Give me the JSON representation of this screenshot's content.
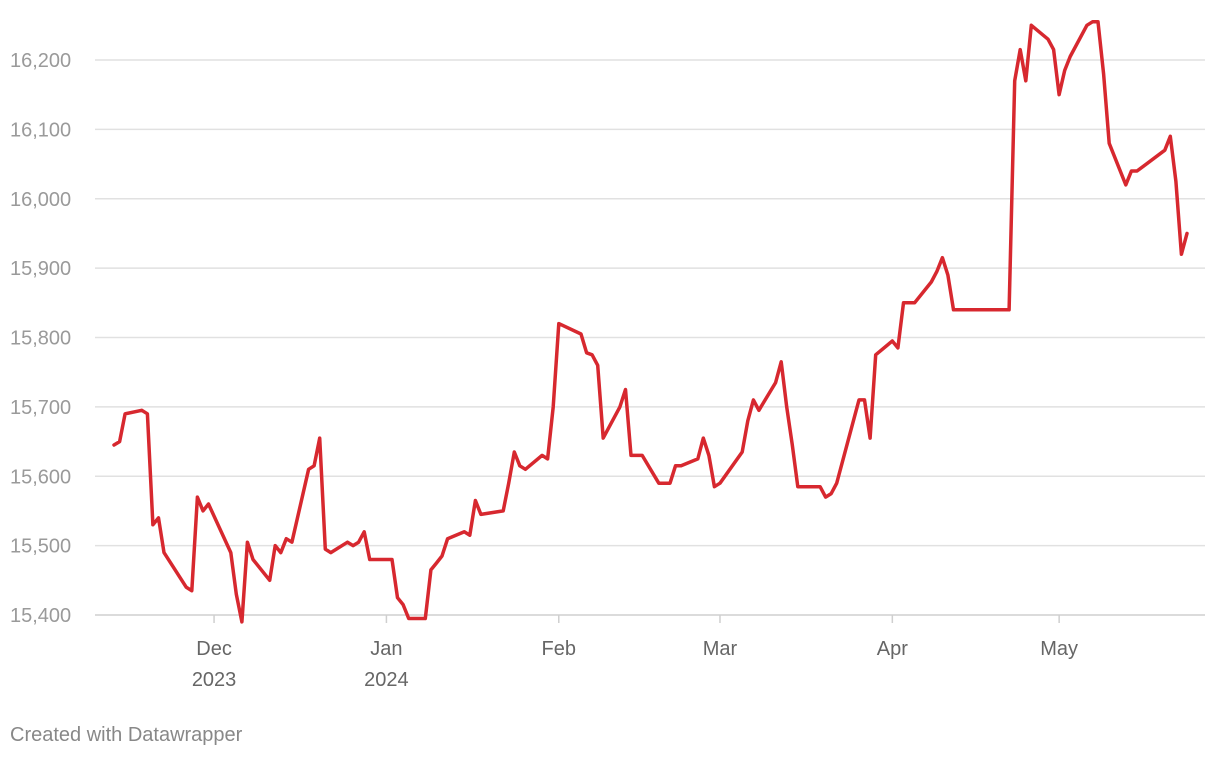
{
  "chart_data": {
    "type": "line",
    "title": "",
    "xlabel": "",
    "ylabel": "",
    "ylim": [
      15380,
      16265
    ],
    "grid": true,
    "y_ticks": [
      {
        "value": 15400,
        "label": "15,400"
      },
      {
        "value": 15500,
        "label": "15,500"
      },
      {
        "value": 15600,
        "label": "15,600"
      },
      {
        "value": 15700,
        "label": "15,700"
      },
      {
        "value": 15800,
        "label": "15,800"
      },
      {
        "value": 15900,
        "label": "15,900"
      },
      {
        "value": 16000,
        "label": "16,000"
      },
      {
        "value": 16100,
        "label": "16,100"
      },
      {
        "value": 16200,
        "label": "16,200"
      }
    ],
    "x_ticks": [
      {
        "date": "2023-12-01",
        "label": "Dec",
        "sublabel": "2023"
      },
      {
        "date": "2024-01-01",
        "label": "Jan",
        "sublabel": "2024"
      },
      {
        "date": "2024-02-01",
        "label": "Feb",
        "sublabel": ""
      },
      {
        "date": "2024-03-01",
        "label": "Mar",
        "sublabel": ""
      },
      {
        "date": "2024-04-01",
        "label": "Apr",
        "sublabel": ""
      },
      {
        "date": "2024-05-01",
        "label": "May",
        "sublabel": ""
      }
    ],
    "xlim": [
      "2023-11-10",
      "2024-05-20"
    ],
    "series": [
      {
        "color": "#d7282f",
        "points": [
          [
            "2023-11-13",
            15645
          ],
          [
            "2023-11-14",
            15650
          ],
          [
            "2023-11-15",
            15690
          ],
          [
            "2023-11-18",
            15695
          ],
          [
            "2023-11-19",
            15690
          ],
          [
            "2023-11-20",
            15530
          ],
          [
            "2023-11-21",
            15540
          ],
          [
            "2023-11-22",
            15490
          ],
          [
            "2023-11-26",
            15440
          ],
          [
            "2023-11-27",
            15435
          ],
          [
            "2023-11-28",
            15570
          ],
          [
            "2023-11-29",
            15550
          ],
          [
            "2023-11-30",
            15560
          ],
          [
            "2023-12-04",
            15490
          ],
          [
            "2023-12-05",
            15430
          ],
          [
            "2023-12-06",
            15390
          ],
          [
            "2023-12-07",
            15505
          ],
          [
            "2023-12-08",
            15480
          ],
          [
            "2023-12-11",
            15450
          ],
          [
            "2023-12-12",
            15500
          ],
          [
            "2023-12-13",
            15490
          ],
          [
            "2023-12-14",
            15510
          ],
          [
            "2023-12-15",
            15505
          ],
          [
            "2023-12-18",
            15610
          ],
          [
            "2023-12-19",
            15615
          ],
          [
            "2023-12-20",
            15655
          ],
          [
            "2023-12-21",
            15495
          ],
          [
            "2023-12-22",
            15490
          ],
          [
            "2023-12-25",
            15505
          ],
          [
            "2023-12-26",
            15500
          ],
          [
            "2023-12-27",
            15505
          ],
          [
            "2023-12-28",
            15520
          ],
          [
            "2023-12-29",
            15480
          ],
          [
            "2024-01-02",
            15480
          ],
          [
            "2024-01-03",
            15425
          ],
          [
            "2024-01-04",
            15415
          ],
          [
            "2024-01-05",
            15395
          ],
          [
            "2024-01-08",
            15395
          ],
          [
            "2024-01-09",
            15465
          ],
          [
            "2024-01-10",
            15475
          ],
          [
            "2024-01-11",
            15485
          ],
          [
            "2024-01-12",
            15510
          ],
          [
            "2024-01-15",
            15520
          ],
          [
            "2024-01-16",
            15515
          ],
          [
            "2024-01-17",
            15565
          ],
          [
            "2024-01-18",
            15545
          ],
          [
            "2024-01-22",
            15550
          ],
          [
            "2024-01-23",
            15590
          ],
          [
            "2024-01-24",
            15635
          ],
          [
            "2024-01-25",
            15615
          ],
          [
            "2024-01-26",
            15610
          ],
          [
            "2024-01-29",
            15630
          ],
          [
            "2024-01-30",
            15625
          ],
          [
            "2024-01-31",
            15700
          ],
          [
            "2024-02-01",
            15820
          ],
          [
            "2024-02-05",
            15805
          ],
          [
            "2024-02-06",
            15778
          ],
          [
            "2024-02-07",
            15775
          ],
          [
            "2024-02-08",
            15760
          ],
          [
            "2024-02-09",
            15655
          ],
          [
            "2024-02-12",
            15700
          ],
          [
            "2024-02-13",
            15725
          ],
          [
            "2024-02-14",
            15630
          ],
          [
            "2024-02-16",
            15630
          ],
          [
            "2024-02-19",
            15590
          ],
          [
            "2024-02-21",
            15590
          ],
          [
            "2024-02-22",
            15615
          ],
          [
            "2024-02-23",
            15615
          ],
          [
            "2024-02-26",
            15625
          ],
          [
            "2024-02-27",
            15655
          ],
          [
            "2024-02-28",
            15630
          ],
          [
            "2024-02-29",
            15585
          ],
          [
            "2024-03-01",
            15590
          ],
          [
            "2024-03-05",
            15635
          ],
          [
            "2024-03-06",
            15680
          ],
          [
            "2024-03-07",
            15710
          ],
          [
            "2024-03-08",
            15695
          ],
          [
            "2024-03-11",
            15735
          ],
          [
            "2024-03-12",
            15765
          ],
          [
            "2024-03-13",
            15700
          ],
          [
            "2024-03-14",
            15645
          ],
          [
            "2024-03-15",
            15585
          ],
          [
            "2024-03-19",
            15585
          ],
          [
            "2024-03-20",
            15570
          ],
          [
            "2024-03-21",
            15575
          ],
          [
            "2024-03-22",
            15590
          ],
          [
            "2024-03-25",
            15680
          ],
          [
            "2024-03-26",
            15710
          ],
          [
            "2024-03-27",
            15710
          ],
          [
            "2024-03-28",
            15655
          ],
          [
            "2024-03-29",
            15775
          ],
          [
            "2024-04-01",
            15795
          ],
          [
            "2024-04-02",
            15785
          ],
          [
            "2024-04-03",
            15850
          ],
          [
            "2024-04-05",
            15850
          ],
          [
            "2024-04-08",
            15880
          ],
          [
            "2024-04-09",
            15895
          ],
          [
            "2024-04-10",
            15915
          ],
          [
            "2024-04-11",
            15890
          ],
          [
            "2024-04-12",
            15840
          ],
          [
            "2024-04-22",
            15840
          ],
          [
            "2024-04-23",
            16170
          ],
          [
            "2024-04-24",
            16215
          ],
          [
            "2024-04-25",
            16170
          ],
          [
            "2024-04-26",
            16250
          ],
          [
            "2024-04-29",
            16230
          ],
          [
            "2024-04-30",
            16215
          ],
          [
            "2024-05-01",
            16150
          ],
          [
            "2024-05-02",
            16185
          ],
          [
            "2024-05-03",
            16205
          ],
          [
            "2024-05-06",
            16250
          ],
          [
            "2024-05-07",
            16255
          ],
          [
            "2024-05-08",
            16255
          ],
          [
            "2024-05-09",
            16180
          ],
          [
            "2024-05-10",
            16080
          ],
          [
            "2024-05-13",
            16020
          ],
          [
            "2024-05-14",
            16040
          ],
          [
            "2024-05-15",
            16040
          ],
          [
            "2024-05-20",
            16070
          ],
          [
            "2024-05-21",
            16090
          ],
          [
            "2024-05-22",
            16025
          ],
          [
            "2024-05-23",
            15920
          ],
          [
            "2024-05-24",
            15950
          ]
        ]
      }
    ]
  },
  "footer": {
    "credit": "Created with Datawrapper"
  }
}
